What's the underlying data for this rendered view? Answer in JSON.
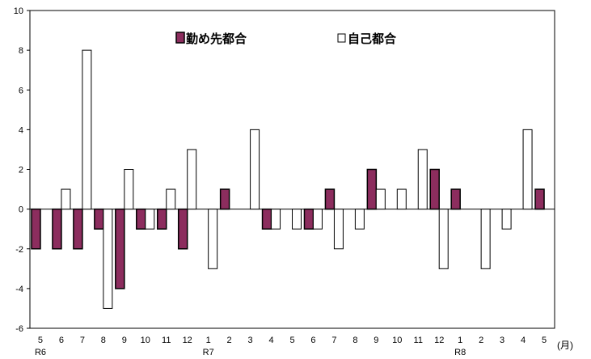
{
  "chart_data": {
    "type": "bar",
    "categories": [
      "5",
      "6",
      "7",
      "8",
      "9",
      "10",
      "11",
      "12",
      "1",
      "2",
      "3",
      "4",
      "5",
      "6",
      "7",
      "8",
      "9",
      "10",
      "11",
      "12",
      "1",
      "2",
      "3",
      "4",
      "5"
    ],
    "year_markers": [
      {
        "index": 0,
        "label": "R6"
      },
      {
        "index": 8,
        "label": "R7"
      },
      {
        "index": 20,
        "label": "R8"
      }
    ],
    "x_unit": "(月)",
    "ylim": [
      -6,
      10
    ],
    "yticks": [
      -6,
      -4,
      -2,
      0,
      2,
      4,
      6,
      8,
      10
    ],
    "grid": false,
    "legend_position": "top-center",
    "series": [
      {
        "name": "勤め先都合",
        "fill": "#8c2d5e",
        "stroke": "#000000",
        "values": [
          -2,
          -2,
          -2,
          -1,
          -4,
          -1,
          -1,
          -2,
          0,
          1,
          0,
          -1,
          0,
          -1,
          1,
          0,
          2,
          0,
          0,
          2,
          1,
          0,
          0,
          0,
          1
        ]
      },
      {
        "name": "自己都合",
        "fill": "#ffffff",
        "stroke": "#000000",
        "values": [
          0,
          1,
          8,
          -5,
          2,
          -1,
          1,
          3,
          -3,
          0,
          4,
          -1,
          -1,
          -1,
          -2,
          -1,
          1,
          1,
          3,
          -3,
          0,
          -3,
          -1,
          4,
          0
        ]
      }
    ]
  }
}
